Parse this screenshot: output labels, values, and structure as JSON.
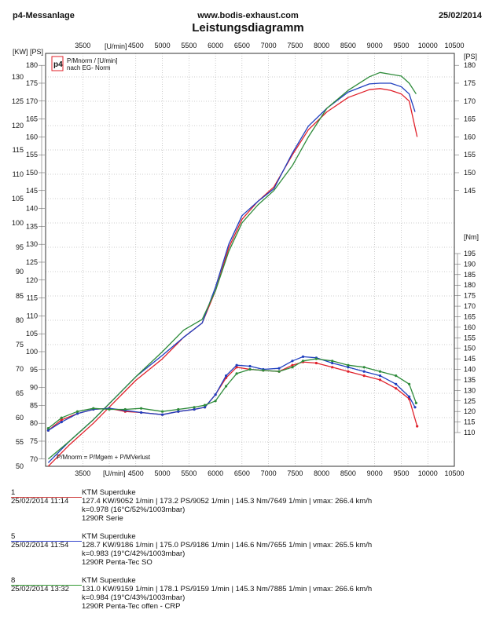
{
  "header": {
    "left": "p4-Messanlage",
    "center": "www.bodis-exhaust.com",
    "right": "25/02/2014",
    "title": "Leistungsdiagramm"
  },
  "axis_labels": {
    "kw_unit": "[KW]",
    "ps_unit": "[PS]",
    "ps_unit_right": "[PS]",
    "nm_unit": "[Nm]",
    "rpm_unit": "[U/min]"
  },
  "legend": {
    "logo_text": "p4",
    "line1": "P/Mnorm / [U/min]",
    "line2": "nach EG- Norm",
    "formula": "P/Mnorm = P/Mgem + P/MVerlust"
  },
  "colors": {
    "run1": "#e0202a",
    "run5": "#1f3fbf",
    "run8": "#2e8b3a",
    "grid": "#9a9a9a"
  },
  "chart_data": {
    "type": "line",
    "title": "Leistungsdiagramm",
    "x_label": "[U/min]",
    "xlim": [
      2800,
      10500
    ],
    "x_ticks": [
      3500,
      4000,
      4500,
      5000,
      5500,
      6000,
      6500,
      7000,
      7500,
      8000,
      8500,
      9000,
      9500,
      10000,
      10500
    ],
    "y_left_kw_ticks": [
      50,
      55,
      60,
      65,
      70,
      75,
      80,
      85,
      90,
      95,
      100,
      105,
      110,
      115,
      120,
      125,
      130
    ],
    "y_left_ps_ticks": [
      70,
      75,
      80,
      85,
      90,
      95,
      100,
      105,
      110,
      115,
      120,
      125,
      130,
      135,
      140,
      145,
      150,
      155,
      160,
      165,
      170,
      175,
      180
    ],
    "y_right_ps_ticks": [
      145,
      150,
      155,
      160,
      165,
      170,
      175,
      180
    ],
    "y_right_nm_ticks": [
      110,
      115,
      120,
      125,
      130,
      135,
      140,
      145,
      150,
      155,
      160,
      165,
      170,
      175,
      180,
      185,
      190,
      195
    ],
    "power_axis_ps": [
      68,
      183
    ],
    "torque_axis_nm": [
      85,
      205
    ],
    "series": [
      {
        "name": "1",
        "quantity": "power_ps",
        "x": [
          2850,
          3250,
          3700,
          4100,
          4500,
          5000,
          5400,
          5750,
          6000,
          6250,
          6500,
          6800,
          7100,
          7450,
          7750,
          8100,
          8500,
          8900,
          9100,
          9300,
          9500,
          9650,
          9800
        ],
        "values": [
          68,
          74,
          80,
          86,
          92,
          98,
          104,
          108,
          117,
          129,
          137,
          142,
          146,
          155,
          162,
          167,
          171,
          173.2,
          173.5,
          173,
          172,
          170,
          160
        ]
      },
      {
        "name": "5",
        "quantity": "power_ps",
        "x": [
          2850,
          3250,
          3700,
          4100,
          4500,
          5000,
          5400,
          5750,
          6000,
          6250,
          6500,
          6800,
          7100,
          7450,
          7750,
          8100,
          8500,
          8900,
          9100,
          9300,
          9500,
          9650,
          9760
        ],
        "values": [
          69,
          75,
          81,
          87,
          93,
          99,
          104,
          108,
          118,
          130,
          138,
          142,
          145.5,
          155.5,
          163,
          168,
          172.5,
          174.8,
          175,
          175,
          174,
          172,
          167
        ]
      },
      {
        "name": "8",
        "quantity": "power_ps",
        "x": [
          2850,
          3250,
          3700,
          4100,
          4500,
          5000,
          5400,
          5750,
          6000,
          6250,
          6500,
          6800,
          7100,
          7450,
          7750,
          8100,
          8500,
          8900,
          9100,
          9300,
          9500,
          9650,
          9780
        ],
        "values": [
          70,
          75,
          81,
          87,
          93,
          100,
          106,
          109,
          117,
          128,
          136,
          141,
          145,
          152,
          160,
          168,
          173,
          176.8,
          178,
          177.5,
          177,
          175,
          172
        ]
      },
      {
        "name": "1",
        "quantity": "torque_nm",
        "x": [
          2850,
          3100,
          3400,
          3700,
          4000,
          4300,
          4600,
          5000,
          5300,
          5600,
          5800,
          6000,
          6200,
          6400,
          6650,
          6900,
          7200,
          7450,
          7650,
          7900,
          8200,
          8500,
          8800,
          9100,
          9400,
          9650,
          9800
        ],
        "values": [
          111,
          116,
          119,
          121,
          121.5,
          120,
          119.5,
          118.5,
          120,
          121,
          122,
          128,
          136,
          141,
          140,
          139.5,
          139,
          142,
          143.5,
          143,
          141,
          139,
          137,
          135,
          131,
          126,
          113
        ]
      },
      {
        "name": "5",
        "quantity": "torque_nm",
        "x": [
          2850,
          3100,
          3400,
          3700,
          4000,
          4300,
          4600,
          5000,
          5300,
          5600,
          5800,
          6000,
          6200,
          6400,
          6650,
          6900,
          7200,
          7450,
          7650,
          7900,
          8200,
          8500,
          8800,
          9100,
          9400,
          9650,
          9760
        ],
        "values": [
          111,
          115,
          119,
          121,
          121.5,
          120.5,
          119.5,
          118.5,
          120,
          121,
          122,
          128,
          137,
          142,
          141.5,
          140,
          140.5,
          144,
          146,
          145.5,
          143,
          141,
          139,
          137,
          133,
          127,
          122
        ]
      },
      {
        "name": "8",
        "quantity": "torque_nm",
        "x": [
          2850,
          3100,
          3400,
          3700,
          4000,
          4300,
          4600,
          5000,
          5300,
          5600,
          5800,
          6000,
          6200,
          6400,
          6650,
          6900,
          7200,
          7450,
          7650,
          7900,
          8200,
          8500,
          8800,
          9100,
          9400,
          9650,
          9780
        ],
        "values": [
          112,
          117,
          120,
          121.5,
          121,
          121,
          121.5,
          120,
          121,
          122,
          123,
          125,
          132,
          138,
          140,
          139.5,
          139,
          141,
          144,
          145,
          144,
          142,
          141,
          139,
          137,
          133,
          124
        ]
      }
    ]
  },
  "runs": [
    {
      "number": "1",
      "date": "25/02/2014  11:14",
      "name": "KTM Superduke",
      "stats": "127.4 KW/9052 1/min  |  173.2 PS/9052 1/min  |  145.3 Nm/7649 1/min  |  vmax: 266.4 km/h",
      "k": "k=0.978 (16°C/52%/1003mbar)",
      "variant": "1290R Serie"
    },
    {
      "number": "5",
      "date": "25/02/2014  11:54",
      "name": "KTM Superduke",
      "stats": "128.7 KW/9186 1/min  |  175.0 PS/9186 1/min  |  146.6 Nm/7655 1/min  |  vmax: 265.5 km/h",
      "k": "k=0.983 (19°C/42%/1003mbar)",
      "variant": "1290R Penta-Tec SO"
    },
    {
      "number": "8",
      "date": "25/02/2014  13:32",
      "name": "KTM Superduke",
      "stats": "131.0 KW/9159 1/min  |  178.1 PS/9159 1/min  |  145.3 Nm/7885 1/min  |  vmax: 266.6 km/h",
      "k": "k=0.984 (19°C/43%/1003mbar)",
      "variant": "1290R Penta-Tec offen - CRP"
    }
  ]
}
